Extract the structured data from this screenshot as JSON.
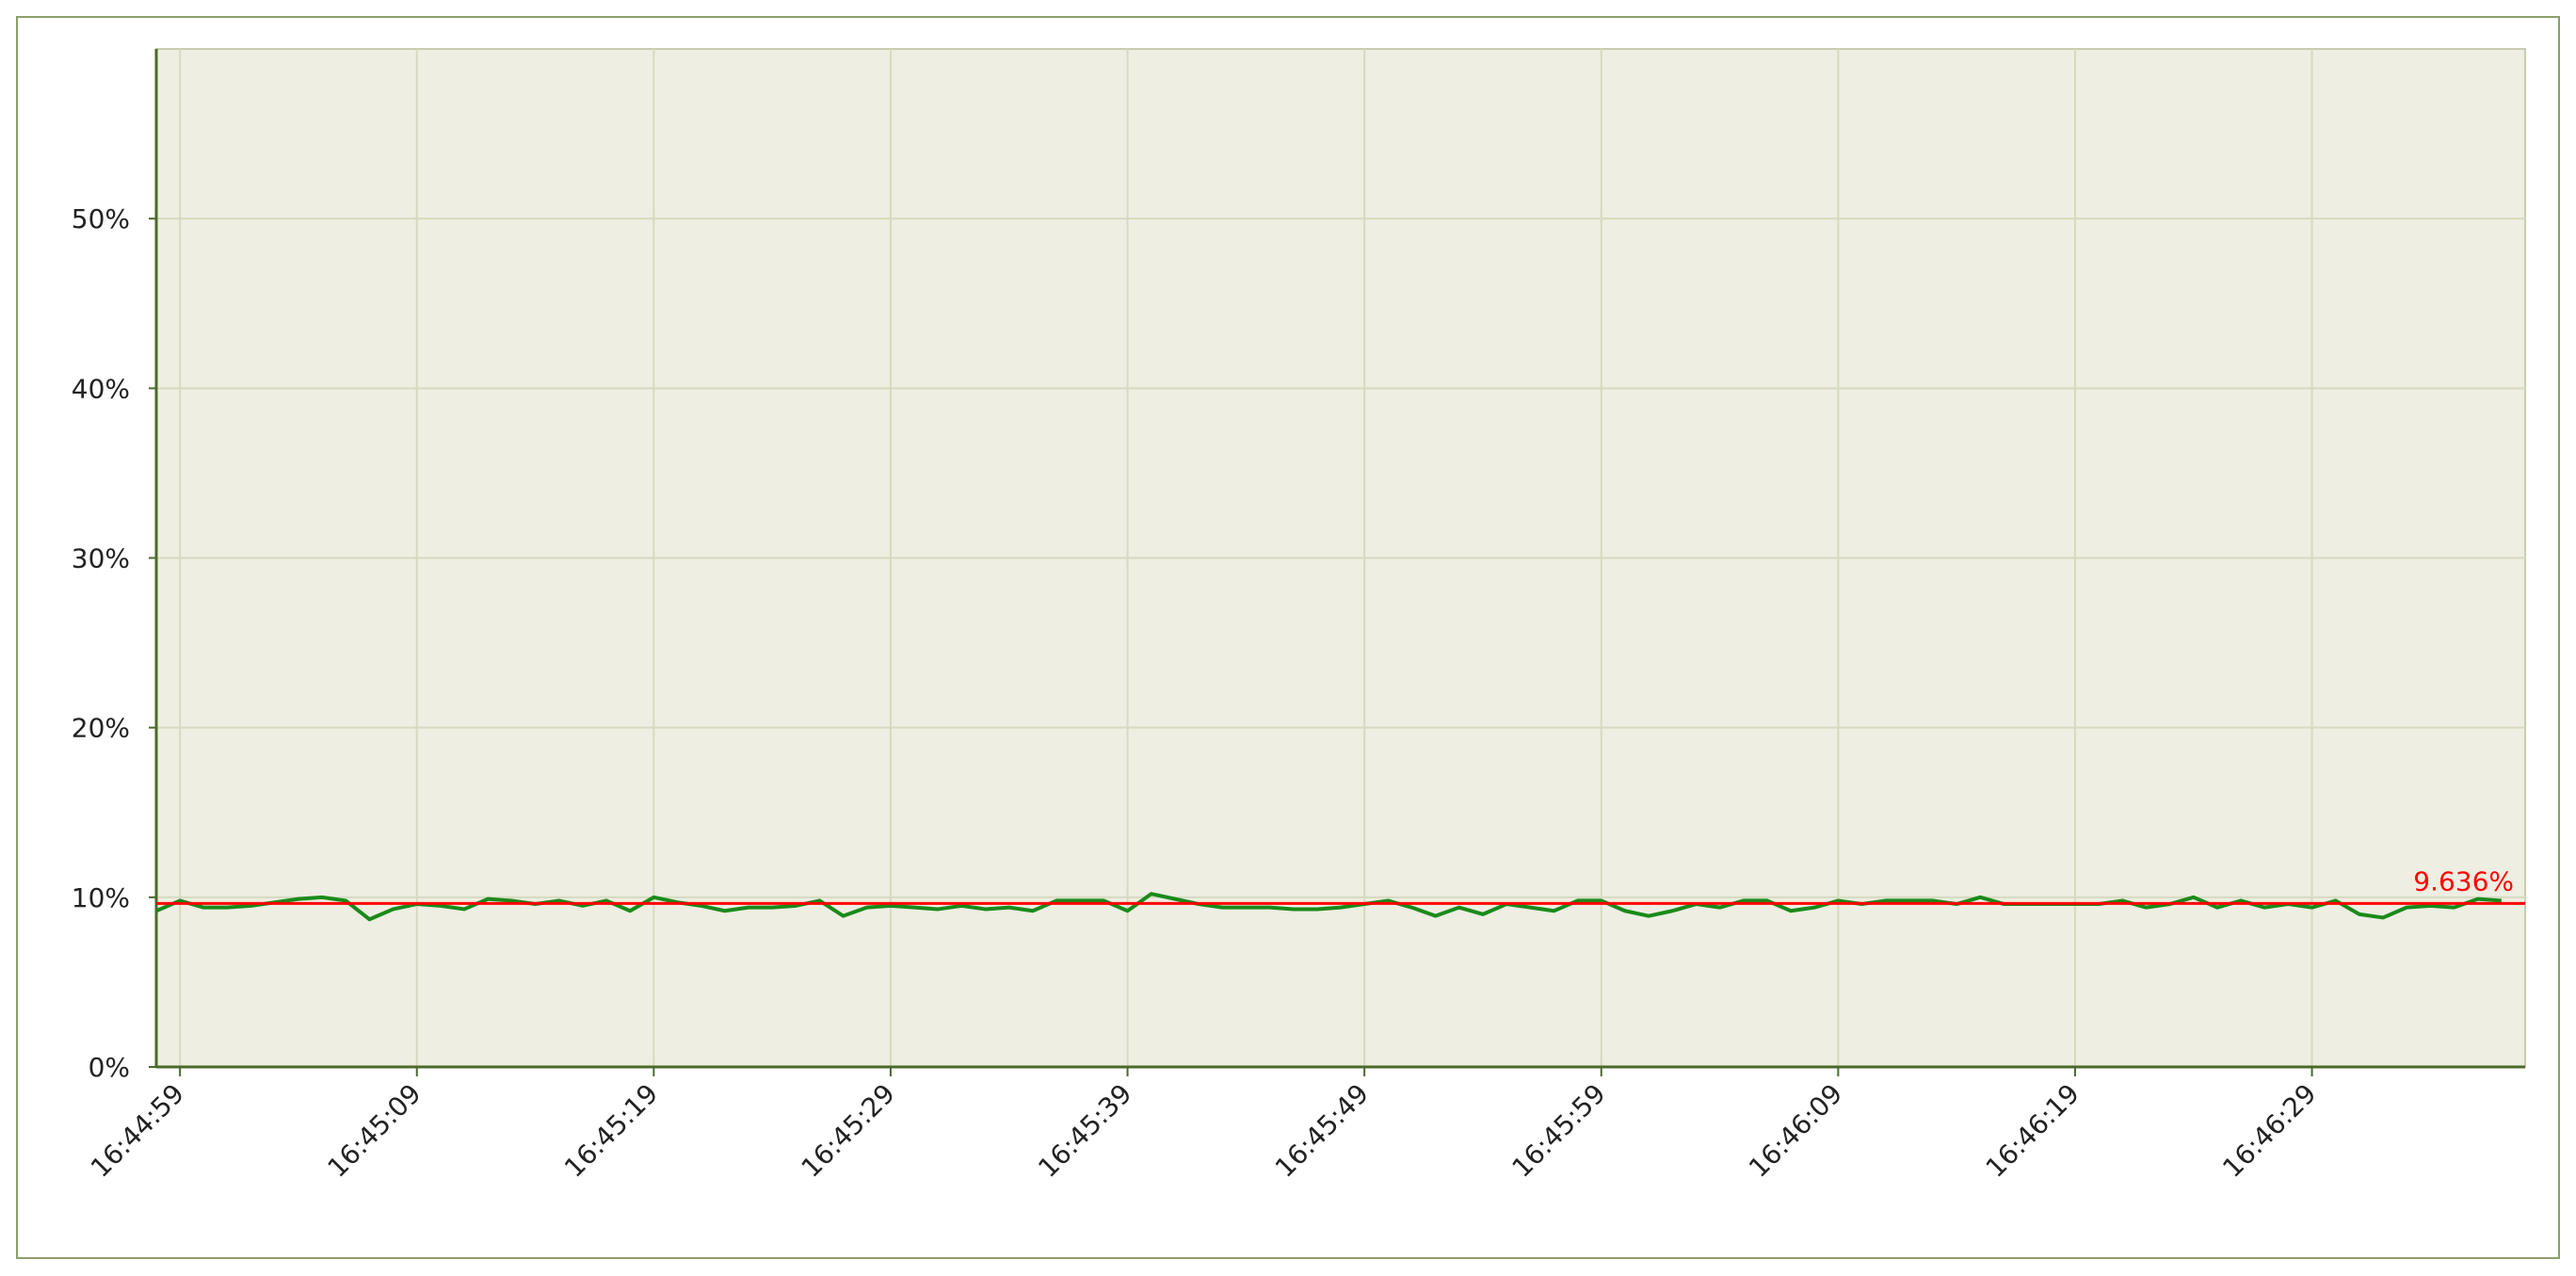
{
  "chart_data": {
    "type": "line",
    "x": [
      "16:44:58",
      "16:44:59",
      "16:45:00",
      "16:45:01",
      "16:45:02",
      "16:45:03",
      "16:45:04",
      "16:45:05",
      "16:45:06",
      "16:45:07",
      "16:45:08",
      "16:45:09",
      "16:45:10",
      "16:45:11",
      "16:45:12",
      "16:45:13",
      "16:45:14",
      "16:45:15",
      "16:45:16",
      "16:45:17",
      "16:45:18",
      "16:45:19",
      "16:45:20",
      "16:45:21",
      "16:45:22",
      "16:45:23",
      "16:45:24",
      "16:45:25",
      "16:45:26",
      "16:45:27",
      "16:45:28",
      "16:45:29",
      "16:45:30",
      "16:45:31",
      "16:45:32",
      "16:45:33",
      "16:45:34",
      "16:45:35",
      "16:45:36",
      "16:45:37",
      "16:45:38",
      "16:45:39",
      "16:45:40",
      "16:45:41",
      "16:45:42",
      "16:45:43",
      "16:45:44",
      "16:45:45",
      "16:45:46",
      "16:45:47",
      "16:45:48",
      "16:45:49",
      "16:45:50",
      "16:45:51",
      "16:45:52",
      "16:45:53",
      "16:45:54",
      "16:45:55",
      "16:45:56",
      "16:45:57",
      "16:45:58",
      "16:45:59",
      "16:46:00",
      "16:46:01",
      "16:46:02",
      "16:46:03",
      "16:46:04",
      "16:46:05",
      "16:46:06",
      "16:46:07",
      "16:46:08",
      "16:46:09",
      "16:46:10",
      "16:46:11",
      "16:46:12",
      "16:46:13",
      "16:46:14",
      "16:46:15",
      "16:46:16",
      "16:46:17",
      "16:46:18",
      "16:46:19",
      "16:46:20",
      "16:46:21",
      "16:46:22",
      "16:46:23",
      "16:46:24",
      "16:46:25",
      "16:46:26",
      "16:46:27",
      "16:46:28",
      "16:46:29",
      "16:46:30",
      "16:46:31",
      "16:46:32",
      "16:46:33",
      "16:46:34",
      "16:46:35",
      "16:46:36",
      "16:46:37"
    ],
    "series": [
      {
        "color": "#1a8a1a",
        "values": [
          9.2,
          9.8,
          9.4,
          9.4,
          9.5,
          9.7,
          9.9,
          10.0,
          9.8,
          8.7,
          9.3,
          9.6,
          9.5,
          9.3,
          9.9,
          9.8,
          9.6,
          9.8,
          9.5,
          9.8,
          9.2,
          10.0,
          9.7,
          9.5,
          9.2,
          9.4,
          9.4,
          9.5,
          9.8,
          8.9,
          9.4,
          9.5,
          9.4,
          9.3,
          9.5,
          9.3,
          9.4,
          9.2,
          9.8,
          9.8,
          9.8,
          9.2,
          10.2,
          9.9,
          9.6,
          9.4,
          9.4,
          9.4,
          9.3,
          9.3,
          9.4,
          9.6,
          9.8,
          9.4,
          8.9,
          9.4,
          9.0,
          9.6,
          9.4,
          9.2,
          9.8,
          9.8,
          9.2,
          8.9,
          9.2,
          9.6,
          9.4,
          9.8,
          9.8,
          9.2,
          9.4,
          9.8,
          9.6,
          9.8,
          9.8,
          9.8,
          9.6,
          10.0,
          9.6,
          9.6,
          9.6,
          9.6,
          9.6,
          9.8,
          9.4,
          9.6,
          10.0,
          9.4,
          9.8,
          9.4,
          9.6,
          9.4,
          9.8,
          9.0,
          8.8,
          9.4,
          9.5,
          9.4,
          9.9,
          9.8
        ]
      }
    ],
    "reference": {
      "value": 9.636,
      "label": "9.636%",
      "color": "#ff0000"
    },
    "xlim": [
      "16:44:58",
      "16:46:38"
    ],
    "xticks": [
      "16:44:59",
      "16:45:09",
      "16:45:19",
      "16:45:29",
      "16:45:39",
      "16:45:49",
      "16:45:59",
      "16:46:09",
      "16:46:19",
      "16:46:29"
    ],
    "ylim": [
      0,
      60
    ],
    "yticks": [
      {
        "value": 0,
        "label": "0%"
      },
      {
        "value": 10,
        "label": "10%"
      },
      {
        "value": 20,
        "label": "20%"
      },
      {
        "value": 30,
        "label": "30%"
      },
      {
        "value": 40,
        "label": "40%"
      },
      {
        "value": 50,
        "label": "50%"
      }
    ],
    "grid": true
  }
}
